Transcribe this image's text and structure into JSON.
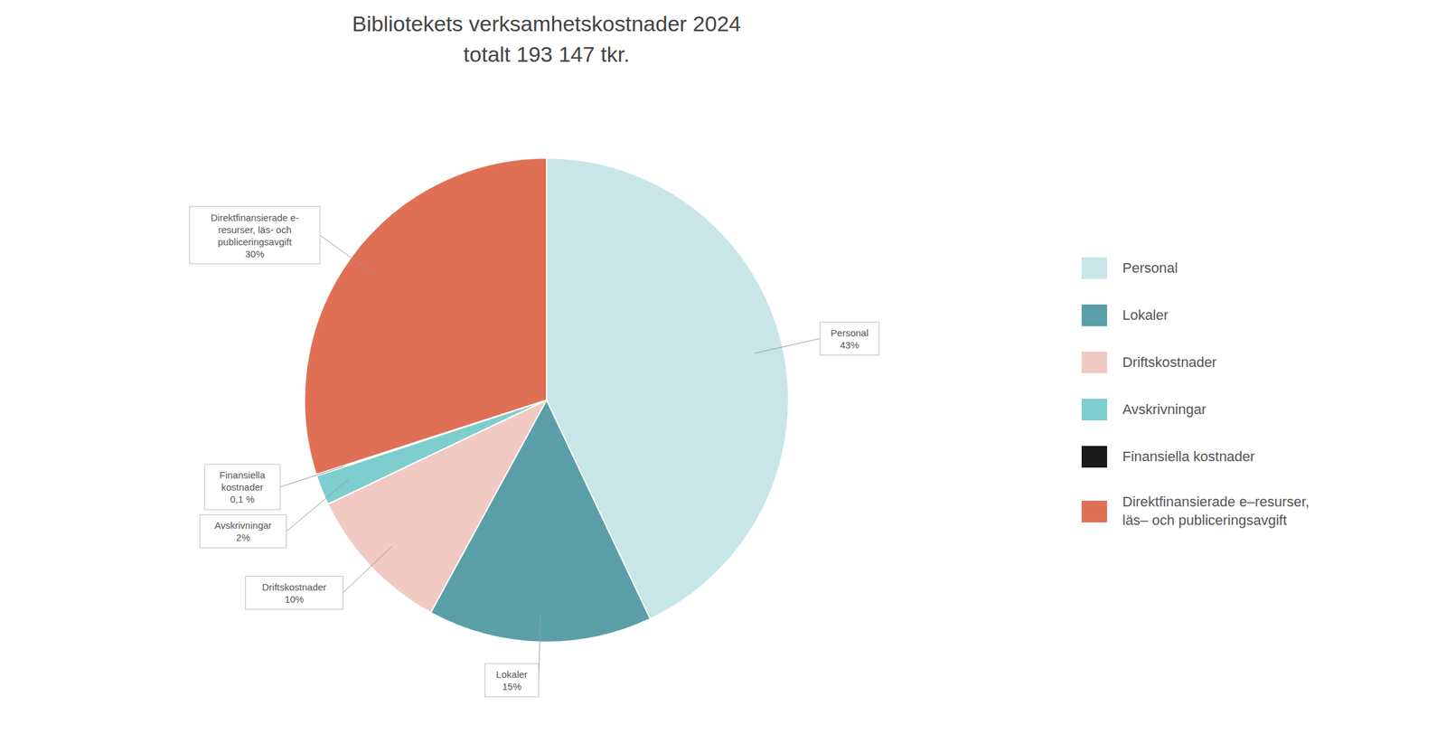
{
  "chart_data": {
    "type": "pie",
    "title": "Bibliotekets verksamhetskostnader 2024\ntotalt 193 147 tkr.",
    "categories": [
      "Personal",
      "Lokaler",
      "Driftskostnader",
      "Avskrivningar",
      "Finansiella kostnader",
      "Direktfinansierade e–resurser,\nläs– och publiceringsavgift"
    ],
    "values": [
      43,
      15,
      10,
      2,
      0.1,
      30
    ],
    "value_labels": [
      "Personal\n43%",
      "Lokaler\n15%",
      "Driftskostnader\n10%",
      "Avskrivningar\n2%",
      "Finansiella\nkostnader\n0,1 %",
      "Direktfinansierade e-\nresurser, läs- och\npubliceringsavgift\n30%"
    ],
    "colors": [
      "#c8e6e8",
      "#5a9fa8",
      "#f2cac4",
      "#7ecece",
      "#1a1a1a",
      "#e07055"
    ],
    "legend": "right"
  }
}
